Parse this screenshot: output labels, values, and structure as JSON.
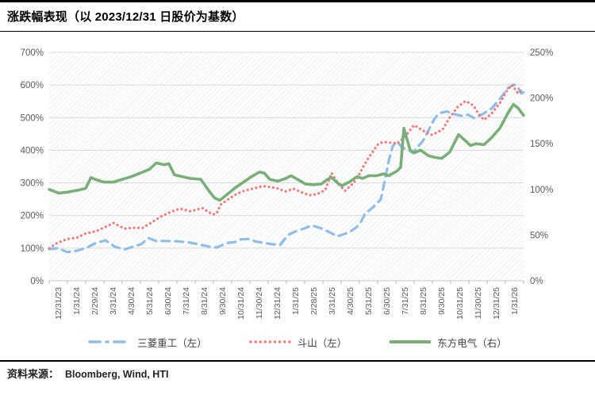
{
  "header": {
    "title": "涨跌幅表现（以 2023/12/31 日股价为基数）"
  },
  "footer": {
    "source_label": "资料来源：",
    "source_text": "Bloomberg, Wind, HTI"
  },
  "legend": {
    "items": [
      {
        "label": "三菱重工（左）",
        "color": "#8FBDE8",
        "style": "dashed"
      },
      {
        "label": "斗山（左）",
        "color": "#F17B7B",
        "style": "dotted"
      },
      {
        "label": "东方电气（右）",
        "color": "#79AE79",
        "style": "solid"
      }
    ]
  },
  "chart_data": {
    "type": "line",
    "title": "涨跌幅表现（以 2023/12/31 日股价为基数）",
    "x_labels": [
      "12/31/23",
      "1/31/24",
      "2/29/24",
      "3/31/24",
      "4/30/24",
      "5/31/24",
      "6/30/24",
      "7/31/24",
      "8/31/24",
      "9/30/24",
      "10/31/24",
      "11/30/24",
      "12/31/24",
      "1/31/25",
      "2/28/25",
      "3/31/25",
      "4/30/25",
      "5/31/25",
      "6/30/25",
      "7/31/25",
      "8/31/25",
      "9/30/25",
      "10/31/25",
      "11/30/25",
      "12/31/25",
      "1/31/26"
    ],
    "left_axis": {
      "min": 0,
      "max": 700,
      "step": 100,
      "ticks": [
        "0%",
        "100%",
        "200%",
        "300%",
        "400%",
        "500%",
        "600%",
        "700%"
      ]
    },
    "right_axis": {
      "min": 0,
      "max": 250,
      "step": 50,
      "ticks": [
        "0%",
        "50%",
        "100%",
        "150%",
        "200%",
        "250%"
      ]
    },
    "grid": true,
    "legend_position": "bottom",
    "series": [
      {
        "name": "三菱重工（左）",
        "axis": "left",
        "color": "#8FBDE8",
        "style": "dashed",
        "points": [
          [
            0,
            97
          ],
          [
            0.45,
            100
          ],
          [
            0.96,
            88
          ],
          [
            1.46,
            92
          ],
          [
            1.92,
            100
          ],
          [
            2.47,
            116
          ],
          [
            2.97,
            124
          ],
          [
            3.47,
            104
          ],
          [
            3.97,
            96
          ],
          [
            4.39,
            104
          ],
          [
            4.85,
            112
          ],
          [
            5.23,
            131
          ],
          [
            5.64,
            122
          ],
          [
            6.19,
            122
          ],
          [
            6.73,
            121
          ],
          [
            7.32,
            118
          ],
          [
            7.86,
            112
          ],
          [
            8.4,
            105
          ],
          [
            8.82,
            102
          ],
          [
            9.4,
            116
          ],
          [
            9.82,
            119
          ],
          [
            10.1,
            127
          ],
          [
            10.49,
            128
          ],
          [
            10.91,
            120
          ],
          [
            11.33,
            116
          ],
          [
            11.75,
            112
          ],
          [
            12.17,
            110
          ],
          [
            12.58,
            140
          ],
          [
            13,
            152
          ],
          [
            13.42,
            160
          ],
          [
            13.84,
            170
          ],
          [
            14.26,
            162
          ],
          [
            14.67,
            152
          ],
          [
            15.18,
            136
          ],
          [
            15.8,
            148
          ],
          [
            16.22,
            165
          ],
          [
            16.43,
            181
          ],
          [
            16.64,
            205
          ],
          [
            17.06,
            225
          ],
          [
            17.48,
            250
          ],
          [
            17.68,
            306
          ],
          [
            17.89,
            367
          ],
          [
            18.1,
            412
          ],
          [
            18.31,
            428
          ],
          [
            18.6,
            408
          ],
          [
            18.94,
            400
          ],
          [
            19.15,
            392
          ],
          [
            19.69,
            428
          ],
          [
            19.98,
            460
          ],
          [
            20.27,
            493
          ],
          [
            20.52,
            513
          ],
          [
            20.94,
            519
          ],
          [
            21.44,
            509
          ],
          [
            21.78,
            505
          ],
          [
            22.07,
            509
          ],
          [
            22.41,
            498
          ],
          [
            22.91,
            513
          ],
          [
            23.33,
            529
          ],
          [
            23.75,
            557
          ],
          [
            24.16,
            590
          ],
          [
            24.5,
            601
          ],
          [
            24.71,
            592
          ],
          [
            24.87,
            574
          ],
          [
            25,
            578
          ]
        ]
      },
      {
        "name": "斗山（左）",
        "axis": "left",
        "color": "#F17B7B",
        "style": "dotted",
        "points": [
          [
            0,
            100
          ],
          [
            0.42,
            116
          ],
          [
            0.96,
            128
          ],
          [
            1.46,
            132
          ],
          [
            1.88,
            144
          ],
          [
            2.47,
            152
          ],
          [
            2.97,
            165
          ],
          [
            3.39,
            177
          ],
          [
            3.97,
            160
          ],
          [
            4.35,
            162
          ],
          [
            4.93,
            162
          ],
          [
            5.35,
            177
          ],
          [
            5.9,
            197
          ],
          [
            6.48,
            213
          ],
          [
            6.9,
            221
          ],
          [
            7.44,
            213
          ],
          [
            8.07,
            223
          ],
          [
            8.61,
            203
          ],
          [
            8.82,
            206
          ],
          [
            9.03,
            233
          ],
          [
            9.45,
            250
          ],
          [
            9.87,
            266
          ],
          [
            10.29,
            276
          ],
          [
            10.7,
            282
          ],
          [
            11.12,
            288
          ],
          [
            11.41,
            290
          ],
          [
            12.04,
            283
          ],
          [
            12.46,
            274
          ],
          [
            12.88,
            282
          ],
          [
            13.3,
            271
          ],
          [
            13.71,
            262
          ],
          [
            14.13,
            266
          ],
          [
            14.55,
            278
          ],
          [
            14.88,
            330
          ],
          [
            15.3,
            292
          ],
          [
            15.6,
            276
          ],
          [
            16.01,
            298
          ],
          [
            16.3,
            322
          ],
          [
            16.56,
            351
          ],
          [
            16.85,
            379
          ],
          [
            17.14,
            403
          ],
          [
            17.35,
            420
          ],
          [
            17.6,
            425
          ],
          [
            17.89,
            424
          ],
          [
            18.31,
            420
          ],
          [
            18.73,
            440
          ],
          [
            19.23,
            477
          ],
          [
            19.69,
            460
          ],
          [
            20.19,
            447
          ],
          [
            20.74,
            464
          ],
          [
            21.11,
            501
          ],
          [
            21.53,
            533
          ],
          [
            21.95,
            551
          ],
          [
            22.36,
            537
          ],
          [
            22.61,
            513
          ],
          [
            22.91,
            493
          ],
          [
            23.33,
            513
          ],
          [
            23.75,
            545
          ],
          [
            24.16,
            586
          ],
          [
            24.4,
            600
          ],
          [
            24.7,
            575
          ],
          [
            25,
            589
          ]
        ]
      },
      {
        "name": "东方电气（右）",
        "axis": "right",
        "color": "#79AE79",
        "style": "solid",
        "points": [
          [
            0,
            100
          ],
          [
            0.5,
            96
          ],
          [
            0.96,
            97
          ],
          [
            1.46,
            99
          ],
          [
            1.92,
            101
          ],
          [
            2.2,
            113
          ],
          [
            2.42,
            111
          ],
          [
            2.88,
            108
          ],
          [
            3.37,
            108
          ],
          [
            3.85,
            111
          ],
          [
            4.33,
            114
          ],
          [
            4.81,
            118
          ],
          [
            5.28,
            122
          ],
          [
            5.64,
            129
          ],
          [
            6.06,
            127
          ],
          [
            6.31,
            128
          ],
          [
            6.6,
            116
          ],
          [
            7.02,
            114
          ],
          [
            7.44,
            112
          ],
          [
            7.99,
            111
          ],
          [
            8.4,
            99
          ],
          [
            8.7,
            91
          ],
          [
            8.99,
            88
          ],
          [
            9.4,
            95
          ],
          [
            9.82,
            102
          ],
          [
            10.24,
            108
          ],
          [
            10.66,
            114
          ],
          [
            11.08,
            119
          ],
          [
            11.33,
            118
          ],
          [
            11.62,
            111
          ],
          [
            12.04,
            109
          ],
          [
            12.46,
            112
          ],
          [
            12.75,
            115
          ],
          [
            13.17,
            110
          ],
          [
            13.5,
            106
          ],
          [
            13.92,
            105
          ],
          [
            14.34,
            106
          ],
          [
            14.67,
            111
          ],
          [
            14.88,
            113
          ],
          [
            15.26,
            106
          ],
          [
            15.43,
            104
          ],
          [
            15.8,
            108
          ],
          [
            16.22,
            114
          ],
          [
            16.51,
            112
          ],
          [
            16.85,
            115
          ],
          [
            17.27,
            115
          ],
          [
            17.6,
            117
          ],
          [
            17.89,
            115
          ],
          [
            18.31,
            120
          ],
          [
            18.52,
            124
          ],
          [
            18.69,
            167
          ],
          [
            19.02,
            143
          ],
          [
            19.23,
            140
          ],
          [
            19.57,
            143
          ],
          [
            19.98,
            137
          ],
          [
            20.32,
            135
          ],
          [
            20.69,
            134
          ],
          [
            21.11,
            141
          ],
          [
            21.57,
            160
          ],
          [
            21.95,
            153
          ],
          [
            22.2,
            148
          ],
          [
            22.49,
            150
          ],
          [
            22.91,
            149
          ],
          [
            23.33,
            157
          ],
          [
            23.75,
            167
          ],
          [
            24.16,
            183
          ],
          [
            24.46,
            193
          ],
          [
            24.71,
            189
          ],
          [
            25,
            181
          ]
        ]
      }
    ],
    "colors": {
      "mitsubishi_blue": "#8FBDE8",
      "doosan_red": "#F17B7B",
      "dongfang_green": "#79AE79",
      "gridline": "#d9d9d9",
      "hatch": "#e7e7e7",
      "axis_text": "#595959"
    }
  }
}
